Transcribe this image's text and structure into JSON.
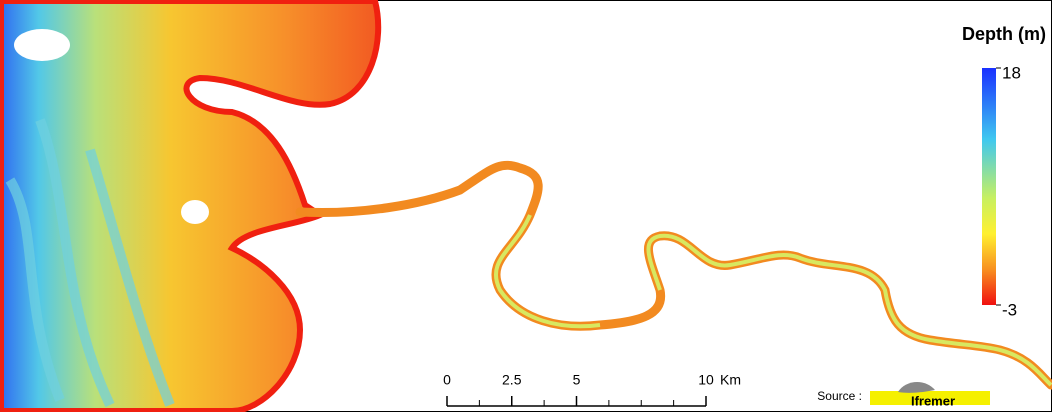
{
  "legend": {
    "title": "Depth (m)",
    "max": 18,
    "min": -3
  },
  "scale_bar": {
    "ticks": [
      0,
      2.5,
      5,
      10
    ],
    "unit": "Km"
  },
  "source": {
    "label": "Source :",
    "logo": "Ifremer"
  }
}
